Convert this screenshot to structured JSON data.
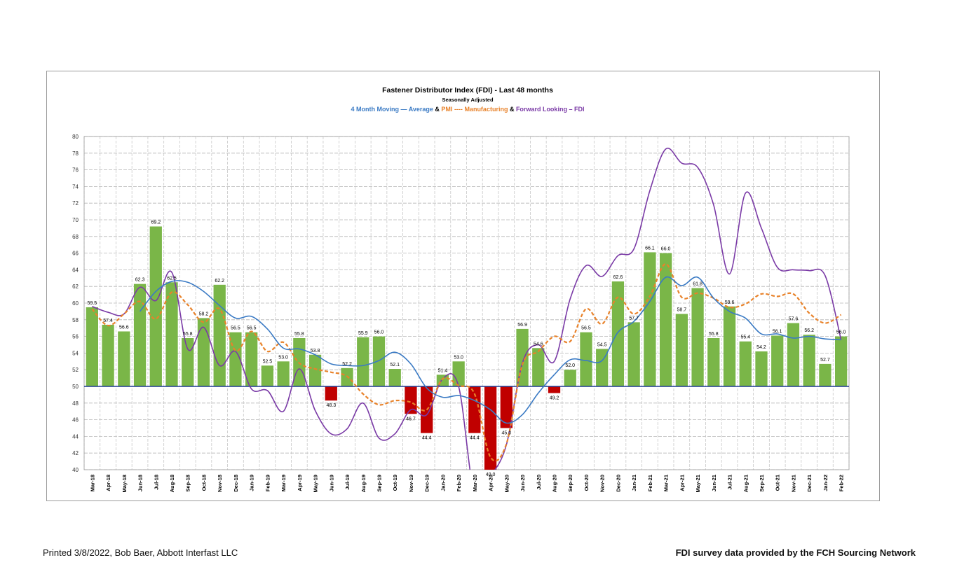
{
  "chart_data": {
    "type": "bar",
    "title": "Fastener Distributor Index (FDI) - Last 48 months",
    "subtitle": "Seasonally Adjusted",
    "legend": [
      {
        "label": "4 Month Moving",
        "dash": "—",
        "suffix": "Average",
        "color": "#3a7ac4"
      },
      {
        "label": "&",
        "color": "#000000"
      },
      {
        "label": "PMI",
        "dash": "----",
        "suffix": "Manufacturing",
        "color": "#e8822a"
      },
      {
        "label": "&",
        "color": "#000000"
      },
      {
        "label": "Forward Looking",
        "dash": "–",
        "suffix": "FDI",
        "color": "#7a3aa6"
      }
    ],
    "ylim": [
      40,
      80
    ],
    "yticks": [
      40,
      42,
      44,
      46,
      48,
      50,
      52,
      54,
      56,
      58,
      60,
      62,
      64,
      66,
      68,
      70,
      72,
      74,
      76,
      78,
      80
    ],
    "baseline": 50,
    "categories": [
      "Mar-18",
      "Apr-18",
      "May-18",
      "Jun-18",
      "Jul-18",
      "Aug-18",
      "Sep-18",
      "Oct-18",
      "Nov-18",
      "Dec-18",
      "Jan-19",
      "Feb-19",
      "Mar-19",
      "Apr-19",
      "May-19",
      "Jun-19",
      "Jul-19",
      "Aug-19",
      "Sep-19",
      "Oct-19",
      "Nov-19",
      "Dec-19",
      "Jan-20",
      "Feb-20",
      "Mar-20",
      "Apr-20",
      "May-20",
      "Jun-20",
      "Jul-20",
      "Aug-20",
      "Sep-20",
      "Oct-20",
      "Nov-20",
      "Dec-20",
      "Jan-21",
      "Feb-21",
      "Mar-21",
      "Apr-21",
      "May-21",
      "Jun-21",
      "Jul-21",
      "Aug-21",
      "Sep-21",
      "Oct-21",
      "Nov-21",
      "Dec-21",
      "Jan-22",
      "Feb-22"
    ],
    "series": [
      {
        "name": "FDI",
        "type": "bar",
        "positive_color": "#7ab648",
        "negative_color": "#c00000",
        "values": [
          59.5,
          57.4,
          56.6,
          62.3,
          69.2,
          62.5,
          55.8,
          58.2,
          62.2,
          56.5,
          56.5,
          52.5,
          53.0,
          55.8,
          53.8,
          48.3,
          52.2,
          55.9,
          56.0,
          52.1,
          46.7,
          44.4,
          51.4,
          53.0,
          44.4,
          40.0,
          45.0,
          56.9,
          54.6,
          49.2,
          52.0,
          56.5,
          54.5,
          62.6,
          57.7,
          66.1,
          66.0,
          58.7,
          61.8,
          55.8,
          59.6,
          55.4,
          54.2,
          56.1,
          57.6,
          56.2,
          52.7,
          56.0
        ],
        "labels": [
          "59.5",
          "57.4",
          "56.6",
          "62.3",
          "69.2",
          "62.5",
          "55.8",
          "58.2",
          "62.2",
          "56.5",
          "56.5",
          "52.5",
          "53.0",
          "55.8",
          "53.8",
          "48.3",
          "52.2",
          "55.9",
          "56.0",
          "52.1",
          "46.7",
          "44.4",
          "51.4",
          "53.0",
          "44.4",
          "40.0",
          "45.0",
          "56.9",
          "54.6",
          "49.2",
          "52.0",
          "56.5",
          "54.5",
          "62.6",
          "57.7",
          "66.1",
          "66.0",
          "58.7",
          "61.8",
          "55.8",
          "59.6",
          "55.4",
          "54.2",
          "56.1",
          "57.6",
          "56.2",
          "52.7",
          "56.0"
        ]
      },
      {
        "name": "4 Month Moving Average",
        "type": "line",
        "color": "#3a7ac4",
        "values": [
          null,
          null,
          null,
          59.0,
          61.4,
          62.6,
          62.5,
          61.4,
          59.7,
          58.2,
          58.4,
          56.9,
          54.6,
          54.5,
          53.8,
          52.7,
          52.5,
          52.5,
          53.1,
          54.1,
          52.7,
          49.8,
          48.7,
          48.9,
          48.3,
          47.2,
          45.6,
          46.6,
          49.2,
          51.4,
          53.2,
          53.1,
          53.1,
          56.5,
          57.8,
          60.2,
          63.1,
          62.1,
          63.1,
          60.6,
          59.0,
          58.2,
          56.3,
          56.3,
          55.8,
          56.0,
          55.7,
          55.6
        ]
      },
      {
        "name": "PMI Manufacturing",
        "type": "line",
        "color": "#e8822a",
        "dashed": true,
        "values": [
          59.3,
          57.3,
          58.7,
          60.2,
          58.1,
          61.3,
          59.8,
          57.7,
          59.3,
          54.3,
          56.6,
          54.2,
          55.3,
          52.8,
          52.1,
          51.7,
          51.2,
          49.1,
          47.8,
          48.3,
          48.1,
          47.2,
          50.9,
          50.1,
          49.1,
          41.5,
          43.1,
          52.6,
          54.2,
          56.0,
          55.4,
          59.3,
          57.5,
          60.7,
          58.7,
          60.8,
          64.7,
          60.7,
          61.2,
          60.6,
          59.5,
          59.9,
          61.1,
          60.8,
          61.1,
          58.8,
          57.6,
          58.6
        ]
      },
      {
        "name": "Forward Looking FDI",
        "type": "line",
        "color": "#7a3aa6",
        "values": [
          59.6,
          58.9,
          58.7,
          61.9,
          60.3,
          63.7,
          54.5,
          57.1,
          52.5,
          54.2,
          49.7,
          49.5,
          47.0,
          52.1,
          47.1,
          44.3,
          44.9,
          48.0,
          43.8,
          44.3,
          47.2,
          46.6,
          50.9,
          50.0,
          37.0,
          39.2,
          43.0,
          52.8,
          55.0,
          53.0,
          60.5,
          64.5,
          63.2,
          65.7,
          66.5,
          73.5,
          78.5,
          76.8,
          76.3,
          71.8,
          63.5,
          73.2,
          69.0,
          64.3,
          64.0,
          63.9,
          63.3,
          55.6
        ]
      }
    ]
  },
  "footer": {
    "left": "Printed 3/8/2022, Bob Baer, Abbott Interfast LLC",
    "right": "FDI survey data provided by the FCH Sourcing Network"
  }
}
